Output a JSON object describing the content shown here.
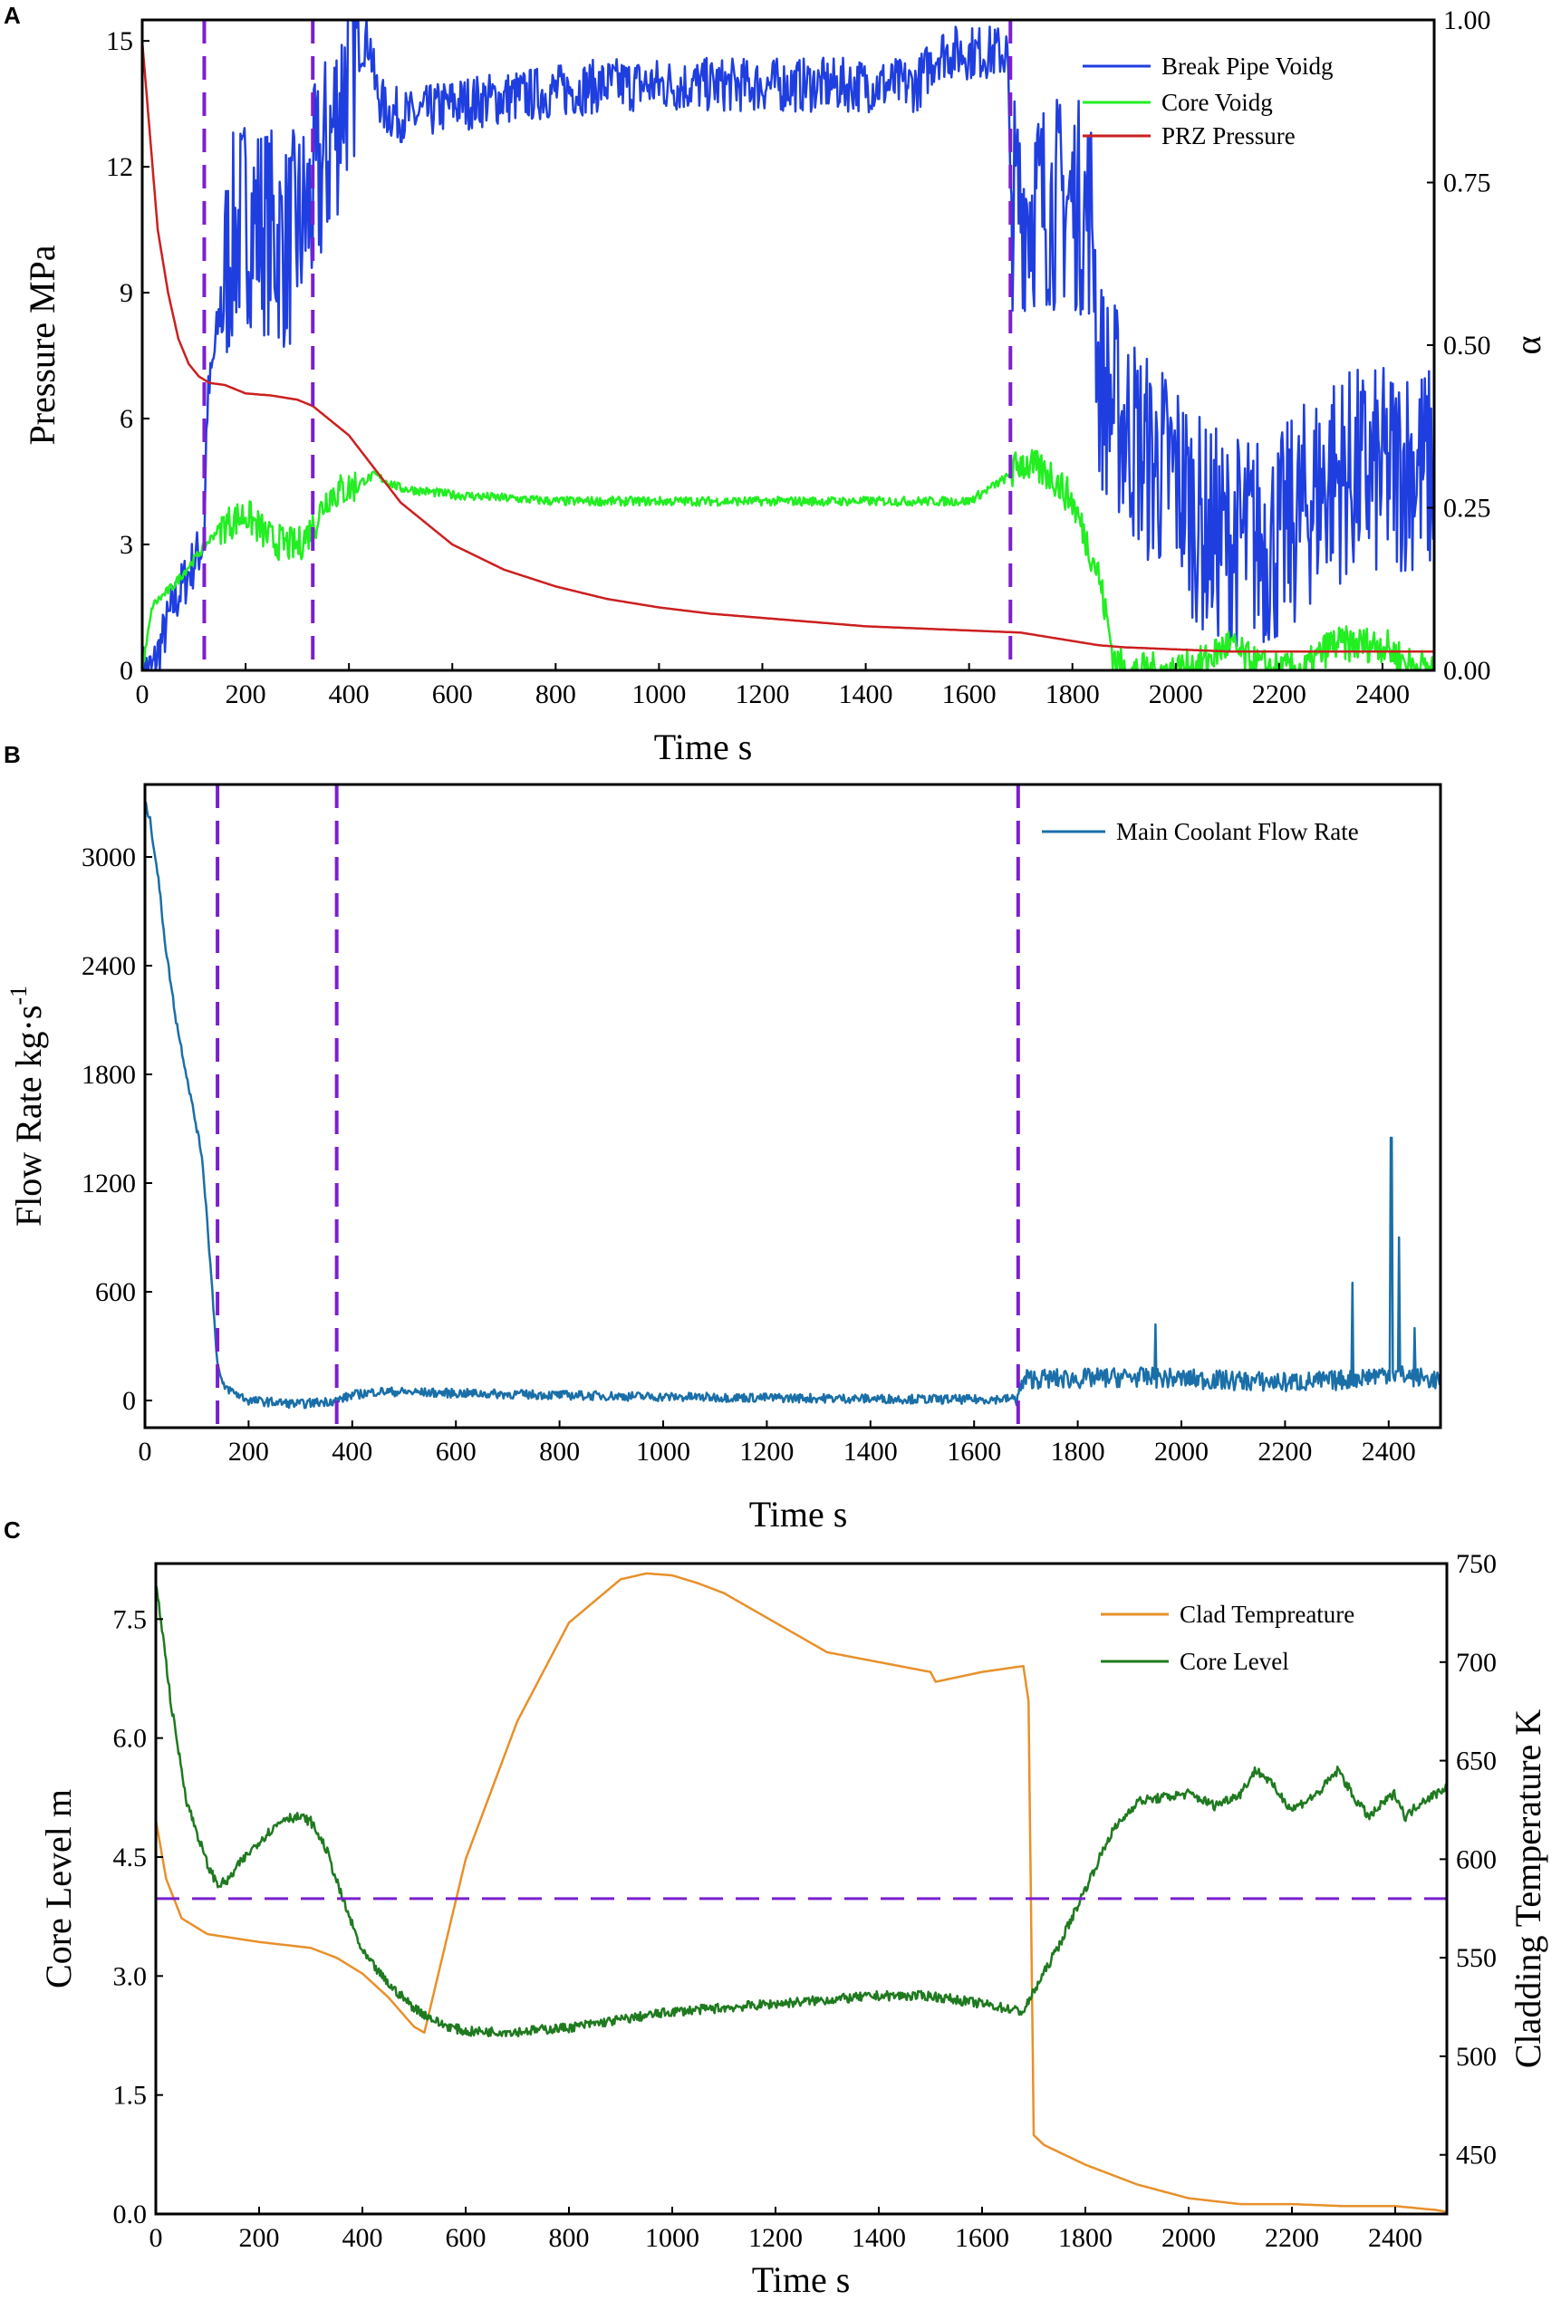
{
  "chart_data": [
    {
      "panel": "A",
      "type": "line",
      "xlabel": "Time s",
      "ylabel": "Pressure MPa",
      "y2label": "α",
      "xlim": [
        0,
        2500
      ],
      "ylim": [
        0,
        15.5
      ],
      "y2lim": [
        0,
        1.0
      ],
      "xticks": [
        0,
        200,
        400,
        600,
        800,
        1000,
        1200,
        1400,
        1600,
        1800,
        2000,
        2200,
        2400
      ],
      "yticks": [
        0,
        3,
        6,
        9,
        12,
        15
      ],
      "y2ticks": [
        "0.00",
        "0.25",
        "0.50",
        "0.75",
        "1.00"
      ],
      "vlines": [
        120,
        330,
        1680
      ],
      "legend_position": "top-right",
      "series": [
        {
          "name": "Break Pipe Voidg",
          "axis": "right",
          "color": "#1f3ee0",
          "noise": 0.12,
          "x": [
            0,
            20,
            40,
            60,
            90,
            120,
            125,
            150,
            170,
            200,
            240,
            280,
            320,
            360,
            390,
            400,
            410,
            420,
            430,
            440,
            450,
            470,
            520,
            600,
            700,
            800,
            900,
            1000,
            1100,
            1200,
            1300,
            1400,
            1500,
            1540,
            1560,
            1675,
            1680,
            1700,
            1800,
            1840,
            1850,
            1900,
            1950,
            2000,
            2050,
            2100,
            2150,
            2200,
            2250,
            2300,
            2350,
            2400,
            2450,
            2500
          ],
          "y": [
            0,
            0,
            0.05,
            0.1,
            0.15,
            0.2,
            0.4,
            0.55,
            0.65,
            0.7,
            0.68,
            0.65,
            0.7,
            0.8,
            0.9,
            0.92,
            0.95,
            0.96,
            0.97,
            0.97,
            0.9,
            0.86,
            0.85,
            0.87,
            0.88,
            0.89,
            0.9,
            0.9,
            0.9,
            0.9,
            0.9,
            0.9,
            0.9,
            0.95,
            0.95,
            0.95,
            0.72,
            0.72,
            0.72,
            0.7,
            0.45,
            0.38,
            0.32,
            0.3,
            0.22,
            0.2,
            0.2,
            0.2,
            0.25,
            0.3,
            0.3,
            0.3,
            0.32,
            0.3
          ]
        },
        {
          "name": "Core Voidg",
          "axis": "right",
          "color": "#22ee22",
          "noise": 0.02,
          "x": [
            0,
            20,
            60,
            100,
            120,
            150,
            200,
            250,
            300,
            330,
            360,
            400,
            450,
            500,
            600,
            800,
            1000,
            1200,
            1400,
            1600,
            1680,
            1700,
            1760,
            1800,
            1850,
            1880,
            1900,
            2000,
            2050,
            2100,
            2150,
            2200,
            2250,
            2300,
            2350,
            2400,
            2450,
            2500
          ],
          "y": [
            0,
            0.1,
            0.13,
            0.17,
            0.19,
            0.22,
            0.24,
            0.2,
            0.19,
            0.22,
            0.27,
            0.28,
            0.3,
            0.28,
            0.27,
            0.26,
            0.26,
            0.26,
            0.26,
            0.26,
            0.3,
            0.32,
            0.3,
            0.26,
            0.15,
            0.02,
            0,
            0,
            0.01,
            0.04,
            0.01,
            0,
            0,
            0.04,
            0.04,
            0.04,
            0.01,
            0
          ]
        },
        {
          "name": "PRZ Pressure",
          "axis": "left",
          "color": "#cc1f1f",
          "noise": 0,
          "x": [
            0,
            10,
            20,
            30,
            50,
            70,
            90,
            110,
            130,
            160,
            200,
            250,
            300,
            330,
            360,
            400,
            450,
            500,
            550,
            600,
            700,
            800,
            900,
            1000,
            1100,
            1200,
            1300,
            1400,
            1500,
            1600,
            1700,
            1750,
            1800,
            1850,
            1900,
            2000,
            2100,
            2200,
            2300,
            2400,
            2500
          ],
          "y": [
            15.0,
            13.5,
            12.0,
            10.5,
            9.0,
            7.9,
            7.3,
            7.0,
            6.85,
            6.8,
            6.6,
            6.55,
            6.45,
            6.3,
            6.0,
            5.6,
            4.8,
            4.0,
            3.5,
            3.0,
            2.4,
            2.0,
            1.7,
            1.5,
            1.35,
            1.25,
            1.15,
            1.05,
            1.0,
            0.95,
            0.9,
            0.8,
            0.7,
            0.6,
            0.55,
            0.5,
            0.45,
            0.45,
            0.45,
            0.45,
            0.45
          ]
        }
      ]
    },
    {
      "panel": "B",
      "type": "line",
      "xlabel": "Time s",
      "ylabel": "Flow Rate kg·s",
      "ylabel_sup": "-1",
      "xlim": [
        0,
        2500
      ],
      "ylim": [
        -150,
        3400
      ],
      "xticks": [
        0,
        200,
        400,
        600,
        800,
        1000,
        1200,
        1400,
        1600,
        1800,
        2000,
        2200,
        2400
      ],
      "yticks": [
        0,
        600,
        1200,
        1800,
        2400,
        3000
      ],
      "vlines": [
        140,
        370,
        1685
      ],
      "legend_position": "top-right",
      "series": [
        {
          "name": "Main Coolant Flow Rate",
          "axis": "left",
          "color": "#1a6fa8",
          "x": [
            0,
            10,
            25,
            40,
            60,
            80,
            100,
            110,
            120,
            130,
            140,
            150,
            200,
            300,
            370,
            400,
            450,
            600,
            800,
            1000,
            1200,
            1400,
            1600,
            1680,
            1700,
            1800,
            1900,
            2000,
            2100,
            2200,
            2300,
            2400,
            2500
          ],
          "y": [
            3300,
            3200,
            2900,
            2500,
            2100,
            1800,
            1500,
            1350,
            1000,
            600,
            200,
            80,
            0,
            -20,
            0,
            30,
            50,
            40,
            30,
            20,
            15,
            10,
            5,
            10,
            120,
            120,
            130,
            120,
            110,
            100,
            110,
            150,
            110
          ],
          "spikes": [
            [
              1950,
              420
            ],
            [
              2330,
              650
            ],
            [
              2405,
              1450
            ],
            [
              2420,
              900
            ],
            [
              2450,
              400
            ]
          ]
        }
      ]
    },
    {
      "panel": "C",
      "type": "line",
      "xlabel": "Time s",
      "ylabel": "Core Level m",
      "y2label": "Cladding Temperature K",
      "xlim": [
        0,
        2500
      ],
      "ylim": [
        0,
        8.2
      ],
      "y2lim": [
        420,
        750
      ],
      "xticks": [
        0,
        200,
        400,
        600,
        800,
        1000,
        1200,
        1400,
        1600,
        1800,
        2000,
        2200,
        2400
      ],
      "yticks": [
        "0.0",
        "1.5",
        "3.0",
        "4.5",
        "6.0",
        "7.5"
      ],
      "y2ticks": [
        450,
        500,
        550,
        600,
        650,
        700,
        750
      ],
      "hline_right": 580,
      "legend_position": "top-right",
      "series": [
        {
          "name": "Clad Tempreature",
          "axis": "right",
          "color": "#e8902a",
          "x": [
            0,
            20,
            50,
            100,
            150,
            200,
            300,
            350,
            400,
            450,
            500,
            520,
            550,
            600,
            700,
            800,
            900,
            950,
            1000,
            1050,
            1100,
            1200,
            1300,
            1400,
            1500,
            1510,
            1600,
            1680,
            1690,
            1700,
            1720,
            1800,
            1900,
            2000,
            2100,
            2200,
            2300,
            2400,
            2480,
            2500
          ],
          "y": [
            620,
            590,
            570,
            562,
            560,
            558,
            555,
            550,
            542,
            530,
            515,
            512,
            545,
            600,
            670,
            720,
            742,
            745,
            744,
            740,
            735,
            720,
            705,
            700,
            695,
            690,
            695,
            698,
            680,
            460,
            455,
            445,
            435,
            428,
            425,
            425,
            424,
            424,
            422,
            421
          ]
        },
        {
          "name": "Core Level",
          "axis": "left",
          "color": "#1f7a1f",
          "x": [
            0,
            10,
            30,
            60,
            100,
            120,
            140,
            160,
            200,
            250,
            280,
            300,
            330,
            360,
            400,
            450,
            500,
            550,
            600,
            700,
            800,
            900,
            1000,
            1100,
            1200,
            1300,
            1400,
            1500,
            1600,
            1680,
            1700,
            1750,
            1800,
            1850,
            1900,
            2000,
            2050,
            2100,
            2130,
            2150,
            2200,
            2250,
            2290,
            2320,
            2350,
            2380,
            2400,
            2420,
            2450,
            2480,
            2500
          ],
          "y": [
            7.9,
            7.5,
            6.4,
            5.2,
            4.4,
            4.15,
            4.2,
            4.4,
            4.7,
            5.0,
            5.0,
            4.95,
            4.6,
            4.0,
            3.3,
            2.9,
            2.6,
            2.4,
            2.3,
            2.3,
            2.35,
            2.45,
            2.55,
            2.6,
            2.65,
            2.7,
            2.75,
            2.75,
            2.65,
            2.55,
            2.8,
            3.4,
            4.1,
            4.8,
            5.2,
            5.3,
            5.15,
            5.3,
            5.6,
            5.5,
            5.1,
            5.3,
            5.6,
            5.25,
            5.0,
            5.2,
            5.3,
            5.0,
            5.2,
            5.3,
            5.4
          ]
        }
      ]
    }
  ]
}
